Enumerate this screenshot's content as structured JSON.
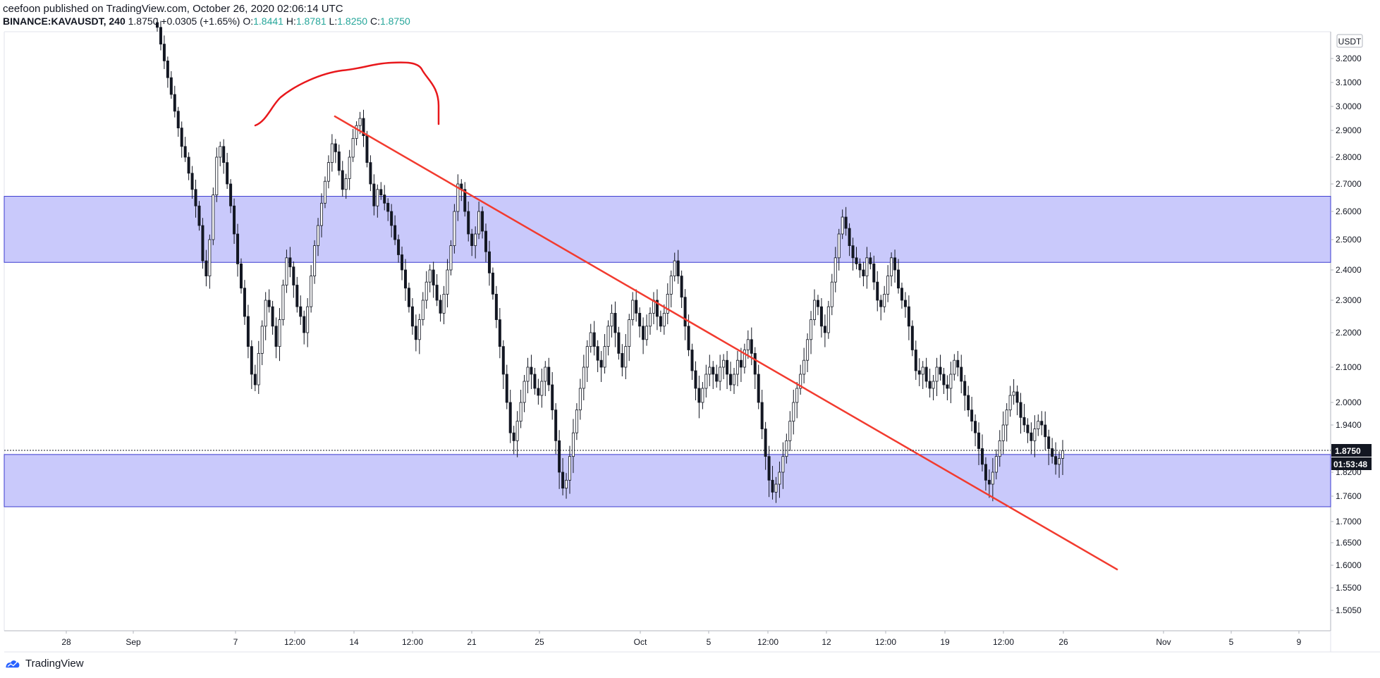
{
  "header": {
    "publisher_line": "ceefoon published on TradingView.com, October 26, 2020 02:06:14 UTC",
    "symbol": "BINANCE:KAVAUSDT, 240",
    "last": "1.8750",
    "change": "+0.0305 (+1.65%)",
    "o_label": "O:",
    "o_value": "1.8441",
    "h_label": "H:",
    "h_value": "1.8781",
    "l_label": "L:",
    "l_value": "1.8250",
    "c_label": "C:",
    "c_value": "1.8750"
  },
  "price_axis": {
    "currency": "USDT",
    "ticks": [
      "3.2000",
      "3.1000",
      "3.0000",
      "2.9000",
      "2.8000",
      "2.7000",
      "2.6000",
      "2.5000",
      "2.4000",
      "2.3000",
      "2.2000",
      "2.1000",
      "2.0000",
      "1.9400",
      "1.8200",
      "1.7600",
      "1.7000",
      "1.6500",
      "1.6000",
      "1.5500",
      "1.5050"
    ],
    "last_price_label": "1.8750",
    "countdown_label": "01:53:48"
  },
  "time_axis": {
    "ticks": [
      "28",
      "Sep",
      "7",
      "12:00",
      "14",
      "12:00",
      "21",
      "25",
      "Oct",
      "5",
      "12:00",
      "12",
      "12:00",
      "19",
      "12:00",
      "26",
      "Nov",
      "5",
      "9"
    ]
  },
  "colors": {
    "up": "#131722",
    "zone_fill": "#c9c9fb",
    "zone_border": "#3a3acf",
    "trendline": "#f23b2f",
    "label_bg": "#131722",
    "green": "#26a69a"
  },
  "footer": {
    "brand": "TradingView",
    "logo_icon": "tradingview-logo-icon"
  },
  "chart_data": {
    "type": "candlestick",
    "symbol": "KAVAUSDT",
    "interval": "240",
    "ylim": [
      1.48,
      3.28
    ],
    "zones": [
      [
        2.425,
        2.655
      ],
      [
        1.735,
        1.865
      ]
    ],
    "trendline": [
      [
        "Sep 13",
        2.96
      ],
      [
        "Oct 29",
        1.59
      ]
    ],
    "closes": [
      3.33,
      3.26,
      3.19,
      3.12,
      3.05,
      2.98,
      2.91,
      2.84,
      2.8,
      2.74,
      2.68,
      2.62,
      2.55,
      2.43,
      2.38,
      2.5,
      2.66,
      2.8,
      2.84,
      2.78,
      2.7,
      2.62,
      2.52,
      2.42,
      2.34,
      2.25,
      2.16,
      2.08,
      2.05,
      2.14,
      2.22,
      2.3,
      2.28,
      2.22,
      2.16,
      2.24,
      2.35,
      2.44,
      2.41,
      2.35,
      2.28,
      2.25,
      2.2,
      2.28,
      2.38,
      2.48,
      2.55,
      2.63,
      2.71,
      2.78,
      2.85,
      2.82,
      2.75,
      2.68,
      2.72,
      2.8,
      2.87,
      2.92,
      2.95,
      2.88,
      2.78,
      2.7,
      2.62,
      2.68,
      2.66,
      2.63,
      2.6,
      2.55,
      2.5,
      2.45,
      2.4,
      2.34,
      2.28,
      2.22,
      2.18,
      2.24,
      2.3,
      2.36,
      2.4,
      2.35,
      2.3,
      2.26,
      2.32,
      2.4,
      2.48,
      2.6,
      2.7,
      2.68,
      2.6,
      2.52,
      2.48,
      2.52,
      2.6,
      2.53,
      2.46,
      2.39,
      2.32,
      2.24,
      2.16,
      2.08,
      2.0,
      1.92,
      1.9,
      1.95,
      2.0,
      2.06,
      2.1,
      2.08,
      2.04,
      2.02,
      2.06,
      2.1,
      2.05,
      1.98,
      1.9,
      1.82,
      1.78,
      1.8,
      1.86,
      1.92,
      1.98,
      2.04,
      2.1,
      2.16,
      2.2,
      2.16,
      2.12,
      2.1,
      2.16,
      2.22,
      2.26,
      2.2,
      2.14,
      2.1,
      2.16,
      2.24,
      2.3,
      2.26,
      2.22,
      2.18,
      2.22,
      2.26,
      2.3,
      2.25,
      2.22,
      2.26,
      2.32,
      2.38,
      2.43,
      2.38,
      2.31,
      2.22,
      2.15,
      2.09,
      2.04,
      2.0,
      2.04,
      2.08,
      2.1,
      2.08,
      2.06,
      2.1,
      2.12,
      2.08,
      2.05,
      2.08,
      2.12,
      2.1,
      2.15,
      2.18,
      2.14,
      2.08,
      2.0,
      1.93,
      1.86,
      1.8,
      1.77,
      1.79,
      1.82,
      1.86,
      1.9,
      1.95,
      2.0,
      2.04,
      2.08,
      2.12,
      2.18,
      2.24,
      2.3,
      2.28,
      2.22,
      2.2,
      2.28,
      2.36,
      2.44,
      2.52,
      2.58,
      2.54,
      2.48,
      2.44,
      2.42,
      2.4,
      2.38,
      2.44,
      2.42,
      2.36,
      2.3,
      2.28,
      2.32,
      2.38,
      2.44,
      2.4,
      2.34,
      2.3,
      2.28,
      2.22,
      2.15,
      2.09,
      2.08,
      2.1,
      2.06,
      2.04,
      2.06,
      2.1,
      2.08,
      2.05,
      2.04,
      2.08,
      2.12,
      2.1,
      2.06,
      2.02,
      1.98,
      1.95,
      1.92,
      1.88,
      1.84,
      1.8,
      1.79,
      1.82,
      1.86,
      1.9,
      1.94,
      1.98,
      2.02,
      2.03,
      2.0,
      1.96,
      1.94,
      1.92,
      1.9,
      1.93,
      1.95,
      1.94,
      1.91,
      1.88,
      1.86,
      1.84,
      1.855,
      1.875
    ]
  }
}
